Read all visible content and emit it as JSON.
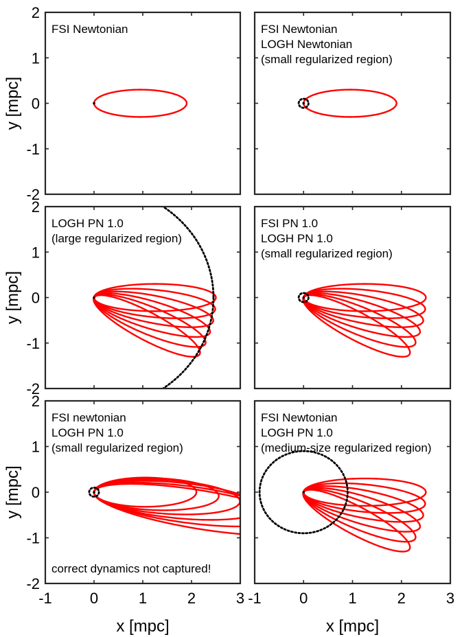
{
  "figure": {
    "x_axis_label": "x [mpc]",
    "y_axis_label": "y [mpc]",
    "orbit_color": "#ff0000",
    "region_color": "#000000",
    "frame_color": "#262626"
  },
  "chart_data": [
    {
      "type": "line",
      "panel": "top-left",
      "annotations": [
        "FSI Newtonian"
      ],
      "xlim": [
        -1,
        3
      ],
      "ylim": [
        -2,
        2
      ],
      "xticks": [
        -1,
        0,
        1,
        2,
        3
      ],
      "yticks": [
        -2,
        -1,
        0,
        1,
        2
      ],
      "xlabel": "",
      "ylabel": "y [mpc]",
      "xtick_labels": [],
      "ytick_labels": [
        "-2",
        "-1",
        "0",
        "1",
        "2"
      ],
      "orbit": {
        "semi_major": 0.95,
        "semi_minor": 0.3,
        "precessions": 1,
        "precession_deg": 0,
        "precession_sign": 1
      },
      "regularized_radius": null
    },
    {
      "type": "line",
      "panel": "top-right",
      "annotations": [
        "FSI Newtonian",
        "LOGH Newtonian",
        "(small regularized region)"
      ],
      "xlim": [
        -1,
        3
      ],
      "ylim": [
        -2,
        2
      ],
      "xticks": [
        -1,
        0,
        1,
        2,
        3
      ],
      "yticks": [
        -2,
        -1,
        0,
        1,
        2
      ],
      "xlabel": "",
      "ylabel": "",
      "xtick_labels": [],
      "ytick_labels": [],
      "orbit": {
        "semi_major": 0.95,
        "semi_minor": 0.3,
        "precessions": 1,
        "precession_deg": 0,
        "precession_sign": 1
      },
      "regularized_radius": 0.1
    },
    {
      "type": "line",
      "panel": "middle-left",
      "annotations": [
        "LOGH PN 1.0",
        "(large regularized region)"
      ],
      "xlim": [
        -1,
        3
      ],
      "ylim": [
        -2,
        2
      ],
      "xticks": [
        -1,
        0,
        1,
        2,
        3
      ],
      "yticks": [
        -2,
        -1,
        0,
        1,
        2
      ],
      "xlabel": "",
      "ylabel": "y [mpc]",
      "xtick_labels": [],
      "ytick_labels": [
        "-2",
        "-1",
        "0",
        "1",
        "2"
      ],
      "orbit": {
        "semi_major": 1.25,
        "semi_minor": 0.3,
        "precessions": 6,
        "precession_deg": 6,
        "precession_sign": -1
      },
      "regularized_radius": 2.45
    },
    {
      "type": "line",
      "panel": "middle-right",
      "annotations": [
        "FSI PN 1.0",
        "LOGH PN 1.0",
        "(small regularized region)"
      ],
      "xlim": [
        -1,
        3
      ],
      "ylim": [
        -2,
        2
      ],
      "xticks": [
        -1,
        0,
        1,
        2,
        3
      ],
      "yticks": [
        -2,
        -1,
        0,
        1,
        2
      ],
      "xlabel": "",
      "ylabel": "",
      "xtick_labels": [],
      "ytick_labels": [],
      "orbit": {
        "semi_major": 1.25,
        "semi_minor": 0.3,
        "precessions": 6,
        "precession_deg": 6,
        "precession_sign": -1
      },
      "regularized_radius": 0.1
    },
    {
      "type": "line",
      "panel": "bottom-left",
      "annotations": [
        "FSI newtonian",
        "LOGH PN 1.0",
        "(small regularized region)",
        "correct dynamics not captured!"
      ],
      "xlim": [
        -1,
        3
      ],
      "ylim": [
        -2,
        2
      ],
      "xticks": [
        -1,
        0,
        1,
        2,
        3
      ],
      "yticks": [
        -2,
        -1,
        0,
        1,
        2
      ],
      "xlabel": "x [mpc]",
      "ylabel": "y [mpc]",
      "xtick_labels": [
        "-1",
        "0",
        "1",
        "2",
        "3"
      ],
      "ytick_labels": [
        "-2",
        "-1",
        "0",
        "1",
        "2"
      ],
      "orbit_series": [
        {
          "semi_major": 1.05,
          "semi_minor": 0.32,
          "rotation_deg": 0
        },
        {
          "semi_major": 1.28,
          "semi_minor": 0.35,
          "rotation_deg": -2
        },
        {
          "semi_major": 1.5,
          "semi_minor": 0.37,
          "rotation_deg": -4
        },
        {
          "semi_major": 1.72,
          "semi_minor": 0.39,
          "rotation_deg": -6
        },
        {
          "semi_major": 1.95,
          "semi_minor": 0.4,
          "rotation_deg": -8
        },
        {
          "semi_major": 2.2,
          "semi_minor": 0.42,
          "rotation_deg": -10
        }
      ],
      "regularized_radius": 0.1
    },
    {
      "type": "line",
      "panel": "bottom-right",
      "annotations": [
        "FSI Newtonian",
        "LOGH PN 1.0",
        "(medium-size regularized region)"
      ],
      "xlim": [
        -1,
        3
      ],
      "ylim": [
        -2,
        2
      ],
      "xticks": [
        -1,
        0,
        1,
        2,
        3
      ],
      "yticks": [
        -2,
        -1,
        0,
        1,
        2
      ],
      "xlabel": "x [mpc]",
      "ylabel": "",
      "xtick_labels": [
        "-1",
        "0",
        "1",
        "2",
        "3"
      ],
      "ytick_labels": [],
      "orbit": {
        "semi_major": 1.25,
        "semi_minor": 0.3,
        "precessions": 6,
        "precession_deg": 6,
        "precession_sign": -1
      },
      "regularized_radius": 0.9
    }
  ]
}
